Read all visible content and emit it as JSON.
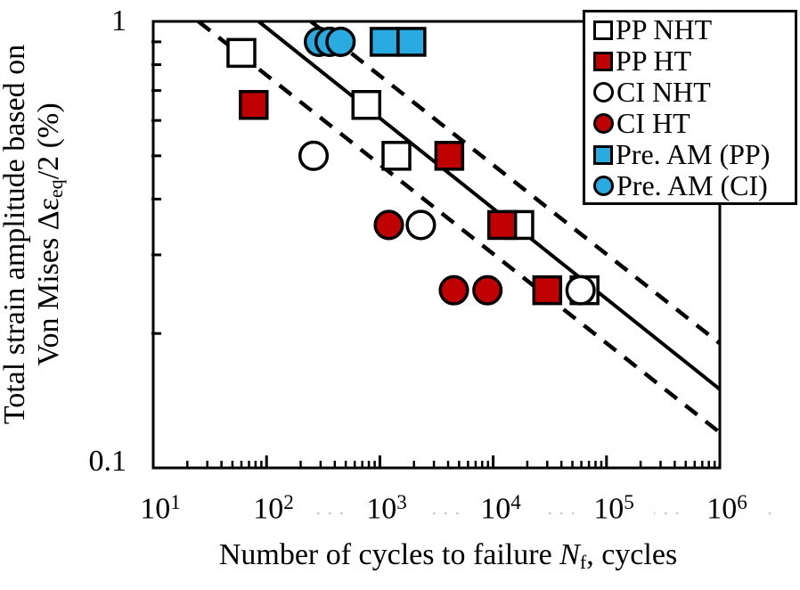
{
  "axes": {
    "x": {
      "scale": "log",
      "min": 10,
      "max": 1000000,
      "ticks": [
        {
          "base": "10",
          "exp": "1"
        },
        {
          "base": "10",
          "exp": "2"
        },
        {
          "base": "10",
          "exp": "3"
        },
        {
          "base": "10",
          "exp": "4"
        },
        {
          "base": "10",
          "exp": "5"
        },
        {
          "base": "10",
          "exp": "6"
        }
      ],
      "title": {
        "pre": "Number of cycles to failure ",
        "sym": "N",
        "sub": "f",
        "post": ", cycles"
      }
    },
    "y": {
      "scale": "log",
      "min": 0.1,
      "max": 1.0,
      "tick_labels": [
        "1",
        "0.1"
      ],
      "title": {
        "line1": "Total strain amplitude based on",
        "line2_pre": "Von Mises Δε",
        "line2_sub": "eq",
        "line2_post": "/2 (%)"
      }
    }
  },
  "legend": {
    "position": "upper right",
    "items": [
      {
        "label": "PP NHT",
        "marker": "square",
        "fill": "#ffffff"
      },
      {
        "label": "PP HT",
        "marker": "square",
        "fill": "#c00000"
      },
      {
        "label": "CI NHT",
        "marker": "circle",
        "fill": "#ffffff"
      },
      {
        "label": "CI HT",
        "marker": "circle",
        "fill": "#c00000"
      },
      {
        "label": "Pre. AM (PP)",
        "marker": "square",
        "fill": "#29abe2"
      },
      {
        "label": "Pre. AM (CI)",
        "marker": "circle",
        "fill": "#29abe2"
      }
    ]
  },
  "chart_data": {
    "type": "scatter",
    "title": "",
    "xlabel": "Number of cycles to failure Nf, cycles",
    "ylabel": "Total strain amplitude based on Von Mises Δεeq/2 (%)",
    "xscale": "log",
    "yscale": "log",
    "xlim": [
      10,
      1000000
    ],
    "ylim": [
      0.1,
      1.0
    ],
    "grid": false,
    "marker_stroke": "#000000",
    "series": [
      {
        "name": "PP NHT",
        "marker": "square",
        "fill": "#ffffff",
        "points": [
          [
            60,
            0.85
          ],
          [
            760,
            0.65
          ],
          [
            1400,
            0.5
          ],
          [
            17000,
            0.35
          ],
          [
            64000,
            0.25
          ]
        ]
      },
      {
        "name": "PP HT",
        "marker": "square",
        "fill": "#c00000",
        "points": [
          [
            77,
            0.65
          ],
          [
            4100,
            0.5
          ],
          [
            12000,
            0.35
          ],
          [
            30000,
            0.25
          ]
        ]
      },
      {
        "name": "CI NHT",
        "marker": "circle",
        "fill": "#ffffff",
        "points": [
          [
            260,
            0.5
          ],
          [
            2300,
            0.35
          ],
          [
            59000,
            0.25
          ]
        ]
      },
      {
        "name": "CI HT",
        "marker": "circle",
        "fill": "#c00000",
        "points": [
          [
            1200,
            0.35
          ],
          [
            4500,
            0.25
          ],
          [
            8900,
            0.25
          ]
        ]
      },
      {
        "name": "Pre. AM (PP)",
        "marker": "square",
        "fill": "#29abe2",
        "points": [
          [
            1100,
            0.9
          ],
          [
            1900,
            0.9
          ]
        ]
      },
      {
        "name": "Pre. AM (CI)",
        "marker": "circle",
        "fill": "#29abe2",
        "points": [
          [
            290,
            0.9
          ],
          [
            360,
            0.9
          ],
          [
            450,
            0.9
          ]
        ]
      }
    ],
    "lines": [
      {
        "name": "mean fit",
        "style": "solid",
        "color": "#000000",
        "from": [
          85,
          1.0
        ],
        "to": [
          1000000,
          0.15
        ]
      },
      {
        "name": "upper band",
        "style": "dashed",
        "color": "#000000",
        "from": [
          246,
          1.0
        ],
        "to": [
          1000000,
          0.19
        ]
      },
      {
        "name": "lower band",
        "style": "dashed",
        "color": "#000000",
        "from": [
          25,
          1.0
        ],
        "to": [
          1000000,
          0.12
        ]
      }
    ]
  }
}
